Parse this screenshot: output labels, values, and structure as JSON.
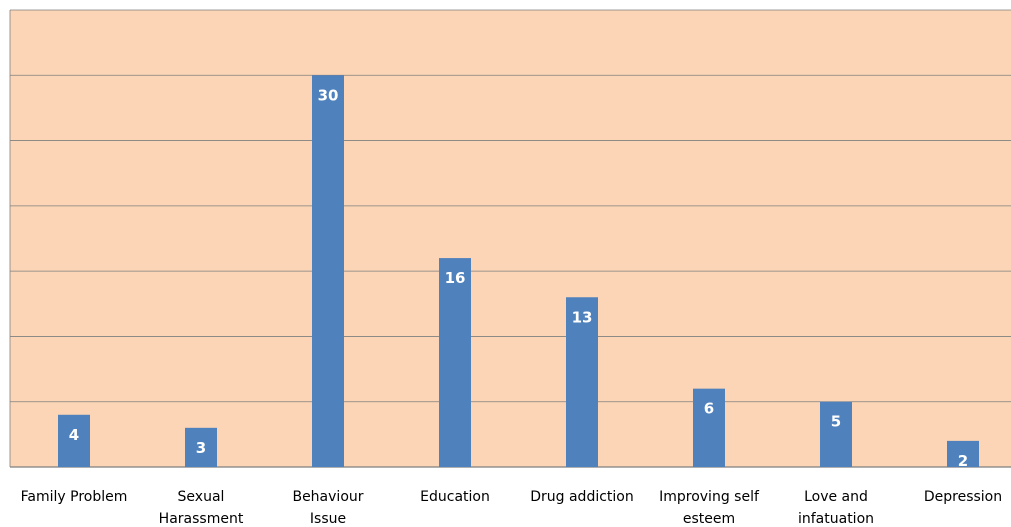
{
  "chart_data": {
    "type": "bar",
    "categories": [
      "Family Problem",
      "Sexual Harassment",
      "Behaviour Issue",
      "Education",
      "Drug addiction",
      "Improving self esteem",
      "Love and infatuation",
      "Depression"
    ],
    "category_lines": [
      [
        "Family Problem"
      ],
      [
        "Sexual",
        "Harassment"
      ],
      [
        "Behaviour",
        "Issue"
      ],
      [
        "Education"
      ],
      [
        "Drug addiction"
      ],
      [
        "Improving self",
        "esteem"
      ],
      [
        "Love and",
        "infatuation"
      ],
      [
        "Depression"
      ]
    ],
    "values": [
      4,
      3,
      30,
      16,
      13,
      6,
      5,
      2
    ],
    "ylim": [
      0,
      35
    ],
    "grid": true,
    "legend": "none",
    "colors": {
      "bar": "#4f81bd",
      "plot_background": "#fbd5b5",
      "gridline": "#7f7f7f",
      "label": "#ffffff"
    }
  }
}
